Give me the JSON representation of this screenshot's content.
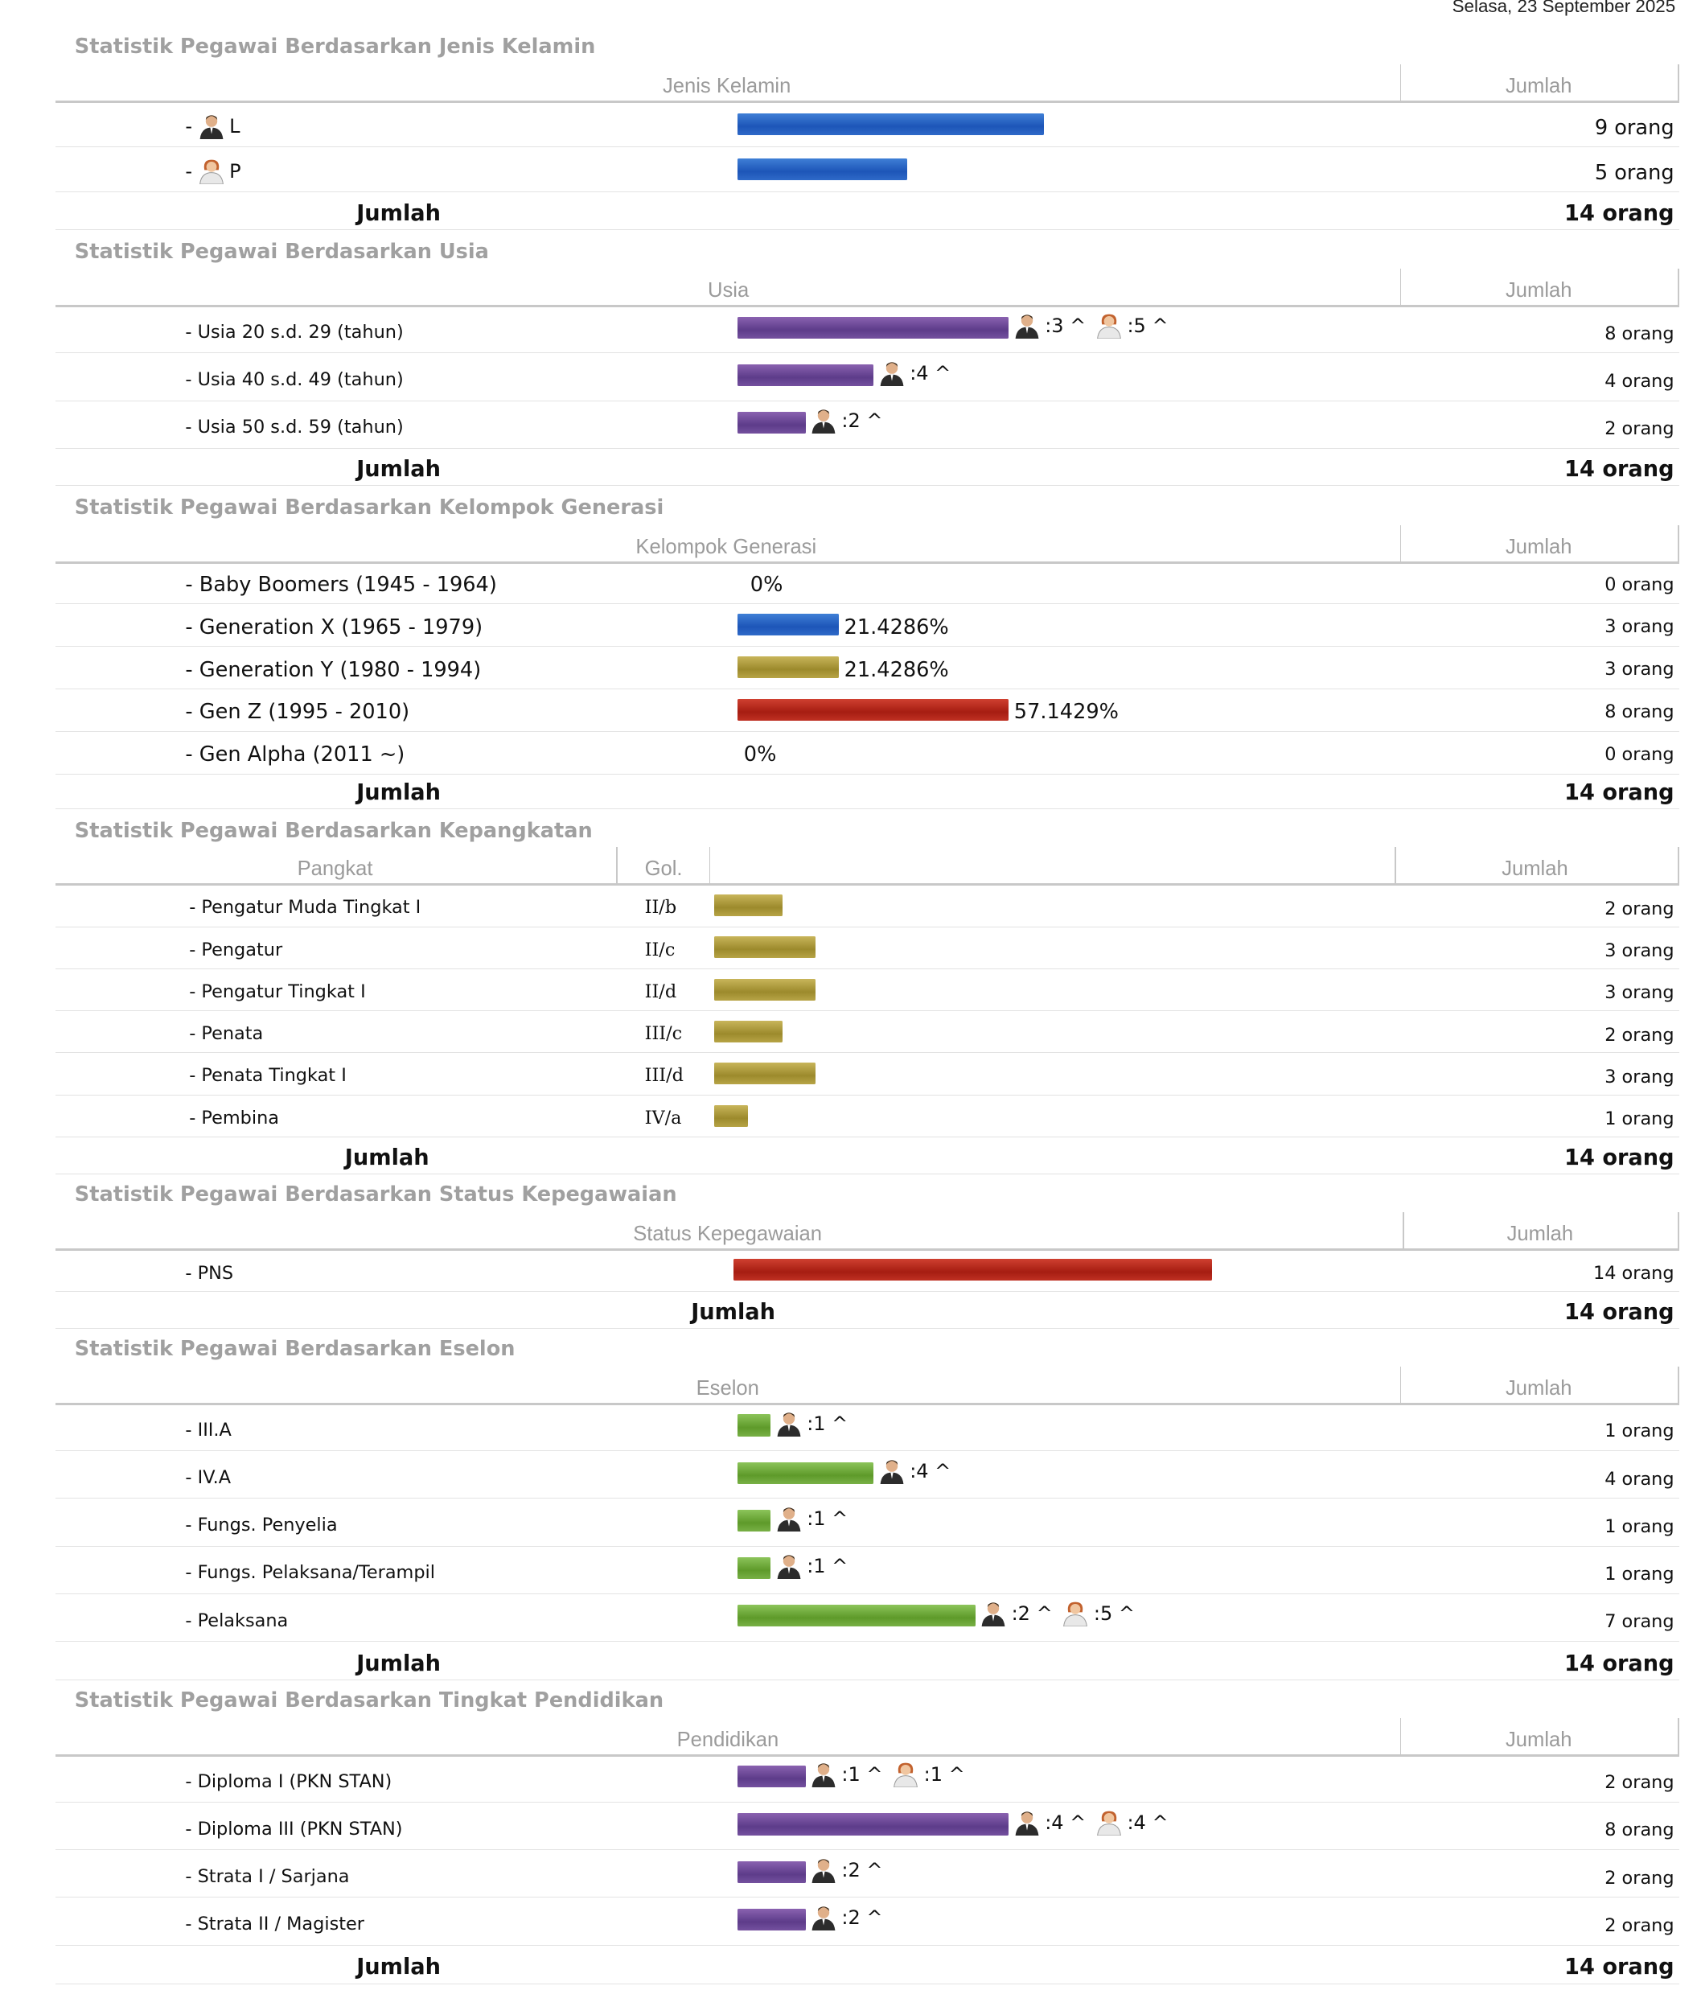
{
  "date": "Selasa, 23 September 2025",
  "common": {
    "jumlah_header": "Jumlah",
    "total_label": "Jumlah"
  },
  "gender": {
    "title": "Statistik Pegawai Berdasarkan Jenis Kelamin",
    "col": "Jenis Kelamin",
    "rows": [
      {
        "label": "L",
        "count": "9 orang",
        "icon": "male-user-icon"
      },
      {
        "label": "P",
        "count": "5 orang",
        "icon": "female-user-icon"
      }
    ],
    "total": "14 orang"
  },
  "age": {
    "title": "Statistik Pegawai Berdasarkan Usia",
    "col": "Usia",
    "rows": [
      {
        "label": "- Usia 20 s.d. 29 (tahun)",
        "count": "8 orang",
        "m": ":3 ^",
        "f": ":5 ^"
      },
      {
        "label": "- Usia 40 s.d. 49 (tahun)",
        "count": "4 orang",
        "m": ":4 ^"
      },
      {
        "label": "- Usia 50 s.d. 59 (tahun)",
        "count": "2 orang",
        "m": ":2 ^"
      }
    ],
    "total": "14 orang"
  },
  "gen": {
    "title": "Statistik Pegawai Berdasarkan Kelompok Generasi",
    "col": "Kelompok Generasi",
    "rows": [
      {
        "label": "- Baby Boomers (1945 - 1964)",
        "pct": "0%",
        "count": "0 orang"
      },
      {
        "label": "- Generation X (1965 - 1979)",
        "pct": "21.4286%",
        "count": "3 orang"
      },
      {
        "label": "- Generation Y (1980 - 1994)",
        "pct": "21.4286%",
        "count": "3 orang"
      },
      {
        "label": "- Gen Z (1995 - 2010)",
        "pct": "57.1429%",
        "count": "8 orang"
      },
      {
        "label": "- Gen Alpha (2011 ~)",
        "pct": "0%",
        "count": "0 orang"
      }
    ],
    "total": "14 orang"
  },
  "rank": {
    "title": "Statistik Pegawai Berdasarkan Kepangkatan",
    "col_pangkat": "Pangkat",
    "col_gol": "Gol.",
    "rows": [
      {
        "label": "- Pengatur Muda Tingkat I",
        "gol": "II/b",
        "count": "2 orang"
      },
      {
        "label": "- Pengatur",
        "gol": "II/c",
        "count": "3 orang"
      },
      {
        "label": "- Pengatur Tingkat I",
        "gol": "II/d",
        "count": "3 orang"
      },
      {
        "label": "- Penata",
        "gol": "III/c",
        "count": "2 orang"
      },
      {
        "label": "- Penata Tingkat I",
        "gol": "III/d",
        "count": "3 orang"
      },
      {
        "label": "- Pembina",
        "gol": "IV/a",
        "count": "1 orang"
      }
    ],
    "total": "14 orang"
  },
  "status": {
    "title": "Statistik Pegawai Berdasarkan Status Kepegawaian",
    "col": "Status Kepegawaian",
    "rows": [
      {
        "label": "- PNS",
        "count": "14 orang"
      }
    ],
    "total": "14 orang"
  },
  "eselon": {
    "title": "Statistik Pegawai Berdasarkan Eselon",
    "col": "Eselon",
    "rows": [
      {
        "label": "- III.A",
        "count": "1 orang",
        "m": ":1 ^"
      },
      {
        "label": "- IV.A",
        "count": "4 orang",
        "m": ":4 ^"
      },
      {
        "label": "- Fungs. Penyelia",
        "count": "1 orang",
        "m": ":1 ^"
      },
      {
        "label": "- Fungs. Pelaksana/Terampil",
        "count": "1 orang",
        "m": ":1 ^"
      },
      {
        "label": "- Pelaksana",
        "count": "7 orang",
        "m": ":2 ^",
        "f": ":5 ^"
      }
    ],
    "total": "14 orang"
  },
  "edu": {
    "title": "Statistik Pegawai Berdasarkan Tingkat Pendidikan",
    "col": "Pendidikan",
    "rows": [
      {
        "label": "- Diploma I (PKN STAN)",
        "count": "2 orang",
        "m": ":1 ^",
        "f": ":1 ^"
      },
      {
        "label": "- Diploma III (PKN STAN)",
        "count": "8 orang",
        "m": ":4 ^",
        "f": ":4 ^"
      },
      {
        "label": "- Strata I / Sarjana",
        "count": "2 orang",
        "m": ":2 ^"
      },
      {
        "label": "- Strata II / Magister",
        "count": "2 orang",
        "m": ":2 ^"
      }
    ],
    "total": "14 orang"
  },
  "chart_data": [
    {
      "type": "bar",
      "title": "Statistik Pegawai Berdasarkan Jenis Kelamin",
      "categories": [
        "L",
        "P"
      ],
      "values": [
        9,
        5
      ],
      "color": "#2f6ac8"
    },
    {
      "type": "bar",
      "title": "Statistik Pegawai Berdasarkan Usia",
      "categories": [
        "Usia 20 s.d. 29 (tahun)",
        "Usia 40 s.d. 49 (tahun)",
        "Usia 50 s.d. 59 (tahun)"
      ],
      "values": [
        8,
        4,
        2
      ],
      "series": [
        {
          "name": "Laki-laki",
          "values": [
            3,
            4,
            2
          ]
        },
        {
          "name": "Perempuan",
          "values": [
            5,
            0,
            0
          ]
        }
      ],
      "color": "#74509e"
    },
    {
      "type": "bar",
      "title": "Statistik Pegawai Berdasarkan Kelompok Generasi",
      "categories": [
        "Baby Boomers (1945 - 1964)",
        "Generation X (1965 - 1979)",
        "Generation Y (1980 - 1994)",
        "Gen Z (1995 - 2010)",
        "Gen Alpha (2011 ~)"
      ],
      "values": [
        0,
        3,
        3,
        8,
        0
      ],
      "colors": [
        "#2f6ac8",
        "#2f6ac8",
        "#b7a446",
        "#bf3022",
        "#2f6ac8"
      ]
    },
    {
      "type": "bar",
      "title": "Statistik Pegawai Berdasarkan Kepangkatan",
      "categories": [
        "II/b",
        "II/c",
        "II/d",
        "III/c",
        "III/d",
        "IV/a"
      ],
      "values": [
        2,
        3,
        3,
        2,
        3,
        1
      ],
      "color": "#b7a446"
    },
    {
      "type": "bar",
      "title": "Statistik Pegawai Berdasarkan Status Kepegawaian",
      "categories": [
        "PNS"
      ],
      "values": [
        14
      ],
      "color": "#bf3022"
    },
    {
      "type": "bar",
      "title": "Statistik Pegawai Berdasarkan Eselon",
      "categories": [
        "III.A",
        "IV.A",
        "Fungs. Penyelia",
        "Fungs. Pelaksana/Terampil",
        "Pelaksana"
      ],
      "values": [
        1,
        4,
        1,
        1,
        7
      ],
      "color": "#78b046"
    },
    {
      "type": "bar",
      "title": "Statistik Pegawai Berdasarkan Tingkat Pendidikan",
      "categories": [
        "Diploma I (PKN STAN)",
        "Diploma III (PKN STAN)",
        "Strata I / Sarjana",
        "Strata II / Magister"
      ],
      "values": [
        2,
        8,
        2,
        2
      ],
      "color": "#74509e"
    }
  ]
}
